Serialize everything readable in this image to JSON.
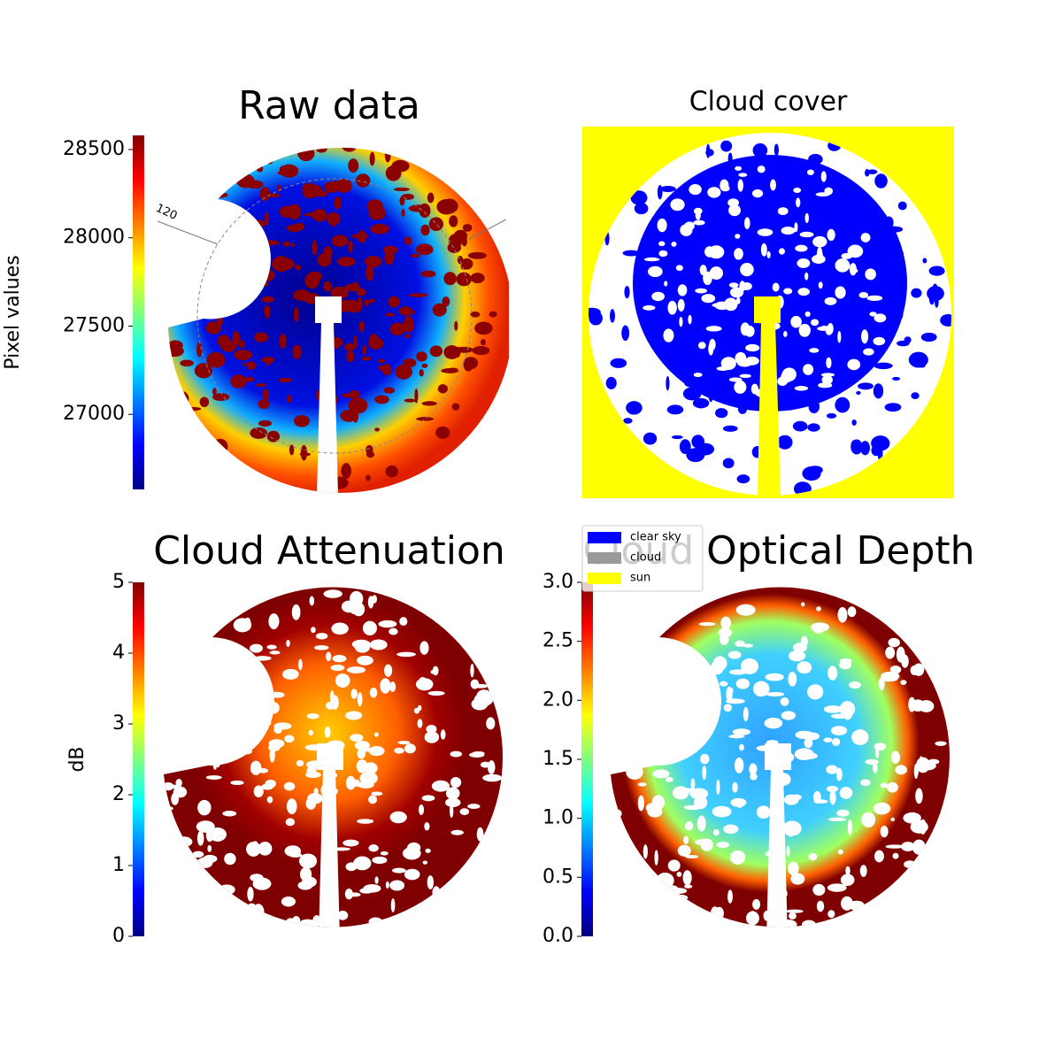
{
  "figure": {
    "panels": [
      {
        "title": "Raw data",
        "annotation": "120",
        "colorbar": {
          "label": "Pixel values",
          "lim": [
            26575,
            28580
          ],
          "ticks": [
            27000,
            27500,
            28000,
            28500
          ]
        }
      },
      {
        "title": "Cloud cover",
        "legend": [
          {
            "name": "clear sky",
            "color": "#0000ff"
          },
          {
            "name": "cloud",
            "color": "#9a9a9a"
          },
          {
            "name": "sun",
            "color": "#ffff00"
          }
        ]
      },
      {
        "title": "Cloud Attenuation",
        "colorbar": {
          "label": "dB",
          "lim": [
            0,
            5
          ],
          "ticks": [
            0,
            1,
            2,
            3,
            4,
            5
          ]
        }
      },
      {
        "title": "Cloud Optical Depth",
        "colorbar": {
          "lim": [
            0,
            3
          ],
          "ticks": [
            {
              "value": 0,
              "label": "0.0"
            },
            0.5,
            {
              "value": 1,
              "label": "1.0"
            },
            1.5,
            {
              "value": 2,
              "label": "2.0"
            },
            2.5,
            {
              "value": 3,
              "label": "3.0"
            }
          ]
        }
      }
    ]
  }
}
